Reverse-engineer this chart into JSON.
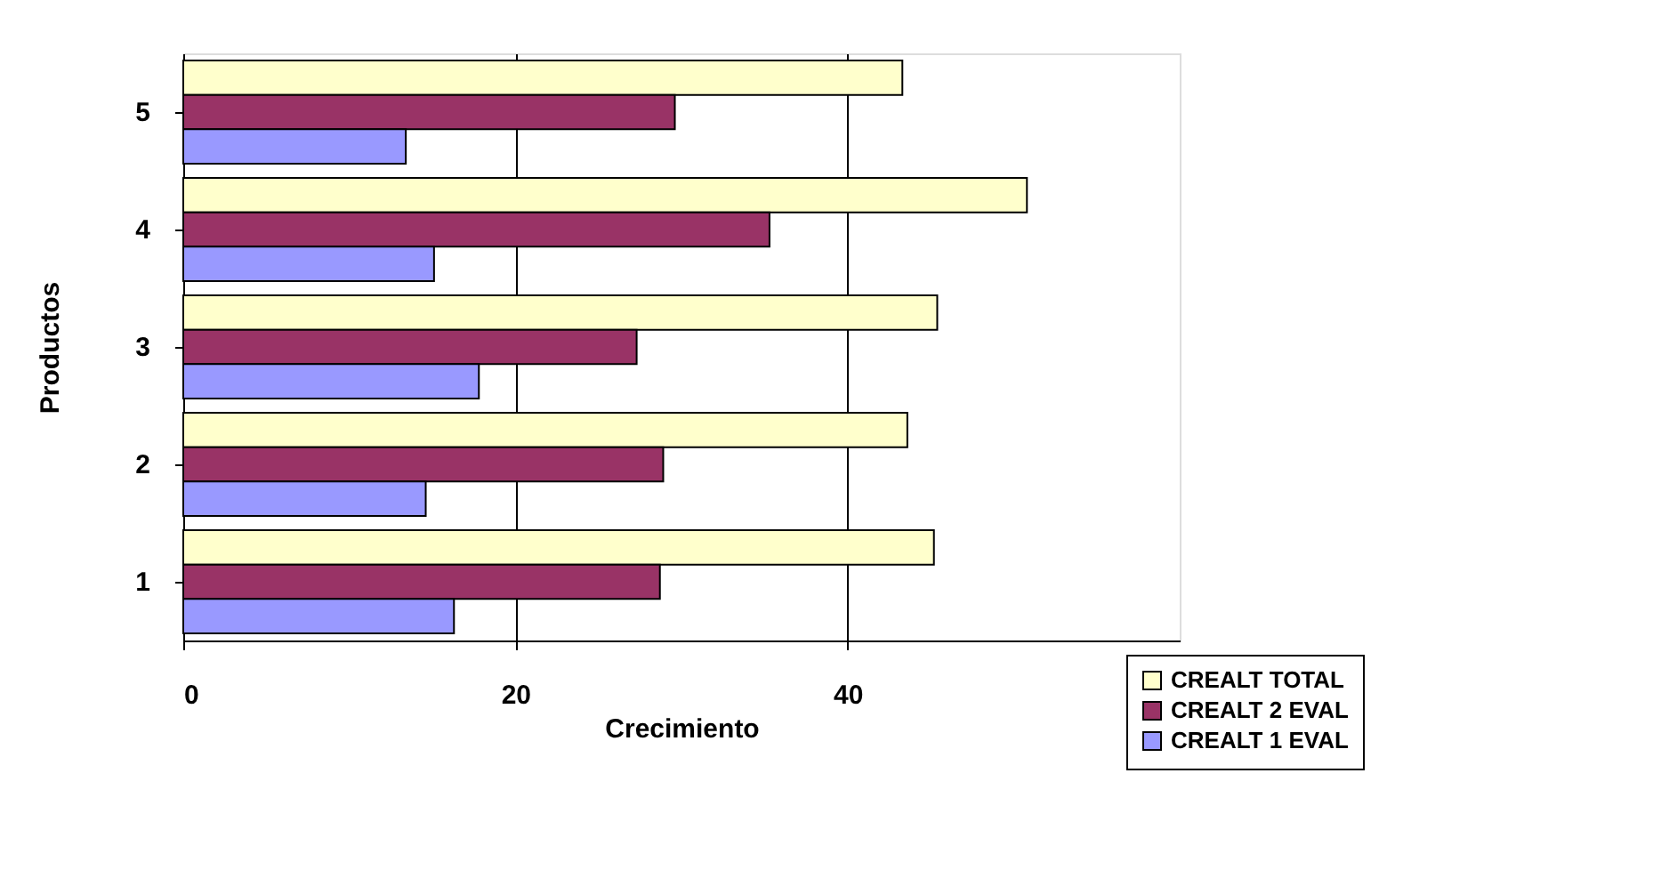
{
  "chart_data": {
    "type": "bar",
    "orientation": "horizontal",
    "xlabel": "Crecimiento",
    "ylabel": "Productos",
    "categories": [
      "5",
      "4",
      "3",
      "2",
      "1"
    ],
    "series": [
      {
        "name": "CREALT TOTAL",
        "color": "#ffffcc",
        "values": [
          43.3,
          50.8,
          45.4,
          43.6,
          45.2
        ]
      },
      {
        "name": "CREALT 2 EVAL",
        "color": "#993366",
        "values": [
          29.6,
          35.3,
          27.3,
          28.9,
          28.7
        ]
      },
      {
        "name": "CREALT 1 EVAL",
        "color": "#9999ff",
        "values": [
          13.4,
          15.1,
          17.8,
          14.6,
          16.3
        ]
      }
    ],
    "xlim": [
      0,
      60
    ],
    "xticks": [
      0,
      20,
      40
    ],
    "grid": "x",
    "legend": "bottom right"
  }
}
